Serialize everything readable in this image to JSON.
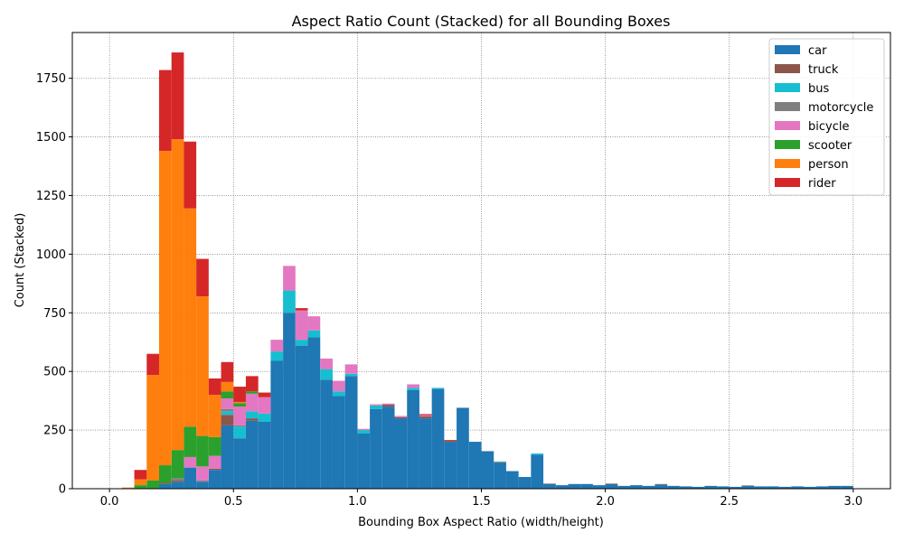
{
  "chart_data": {
    "type": "bar",
    "stacked": true,
    "title": "Aspect Ratio Count (Stacked) for all Bounding Boxes",
    "xlabel": "Bounding Box Aspect Ratio (width/height)",
    "ylabel": "Count (Stacked)",
    "xlim": [
      -0.15,
      3.15
    ],
    "ylim": [
      0,
      1945
    ],
    "x_ticks": [
      0.0,
      0.5,
      1.0,
      1.5,
      2.0,
      2.5,
      3.0
    ],
    "x_tick_labels": [
      "0.0",
      "0.5",
      "1.0",
      "1.5",
      "2.0",
      "2.5",
      "3.0"
    ],
    "y_ticks": [
      0,
      250,
      500,
      750,
      1000,
      1250,
      1500,
      1750
    ],
    "y_tick_labels": [
      "0",
      "250",
      "500",
      "750",
      "1000",
      "1250",
      "1500",
      "1750"
    ],
    "grid": true,
    "legend_position": "top-right",
    "bin_width": 0.05,
    "bin_starts": [
      0.0,
      0.05,
      0.1,
      0.15,
      0.2,
      0.25,
      0.3,
      0.35,
      0.4,
      0.45,
      0.5,
      0.55,
      0.6,
      0.65,
      0.7,
      0.75,
      0.8,
      0.85,
      0.9,
      0.95,
      1.0,
      1.05,
      1.1,
      1.15,
      1.2,
      1.25,
      1.3,
      1.35,
      1.4,
      1.45,
      1.5,
      1.55,
      1.6,
      1.65,
      1.7,
      1.75,
      1.8,
      1.85,
      1.9,
      1.95,
      2.0,
      2.05,
      2.1,
      2.15,
      2.2,
      2.25,
      2.3,
      2.35,
      2.4,
      2.45,
      2.5,
      2.55,
      2.6,
      2.65,
      2.7,
      2.75,
      2.8,
      2.85,
      2.9,
      2.95
    ],
    "series": [
      {
        "name": "car",
        "color": "#1f77b4",
        "values": [
          0,
          0,
          0,
          0,
          20,
          30,
          90,
          30,
          80,
          270,
          215,
          290,
          285,
          545,
          750,
          610,
          645,
          465,
          395,
          480,
          235,
          340,
          350,
          300,
          420,
          300,
          425,
          200,
          345,
          200,
          160,
          110,
          75,
          50,
          145,
          20,
          15,
          20,
          20,
          15,
          20,
          12,
          15,
          12,
          18,
          12,
          10,
          8,
          12,
          10,
          8,
          12,
          10,
          10,
          8,
          10,
          8,
          10,
          12,
          12
        ]
      },
      {
        "name": "truck",
        "color": "#8c564b",
        "values": [
          0,
          0,
          0,
          0,
          5,
          5,
          0,
          0,
          5,
          45,
          0,
          10,
          0,
          0,
          0,
          0,
          0,
          0,
          0,
          0,
          0,
          0,
          8,
          5,
          0,
          8,
          0,
          5,
          0,
          0,
          0,
          3,
          0,
          0,
          0,
          2,
          0,
          0,
          0,
          0,
          2,
          0,
          0,
          0,
          2,
          0,
          0,
          0,
          0,
          0,
          0,
          2,
          0,
          0,
          0,
          0,
          0,
          0,
          0,
          0
        ]
      },
      {
        "name": "bus",
        "color": "#17becf",
        "values": [
          0,
          0,
          0,
          0,
          0,
          0,
          0,
          0,
          0,
          15,
          50,
          30,
          35,
          40,
          95,
          25,
          30,
          45,
          20,
          10,
          15,
          15,
          0,
          0,
          10,
          0,
          5,
          0,
          0,
          0,
          0,
          3,
          0,
          0,
          5,
          0,
          0,
          0,
          0,
          0,
          0,
          0,
          0,
          0,
          0,
          0,
          0,
          0,
          0,
          0,
          0,
          0,
          0,
          0,
          0,
          0,
          0,
          0,
          0,
          0
        ]
      },
      {
        "name": "motorcycle",
        "color": "#7f7f7f",
        "values": [
          0,
          0,
          0,
          0,
          0,
          10,
          0,
          5,
          0,
          10,
          5,
          0,
          0,
          0,
          0,
          0,
          0,
          0,
          0,
          0,
          0,
          0,
          0,
          0,
          0,
          0,
          0,
          0,
          0,
          0,
          0,
          0,
          0,
          0,
          0,
          0,
          0,
          0,
          0,
          0,
          0,
          0,
          0,
          0,
          0,
          0,
          0,
          0,
          0,
          0,
          0,
          0,
          0,
          0,
          0,
          0,
          0,
          0,
          0,
          0
        ]
      },
      {
        "name": "bicycle",
        "color": "#e377c2",
        "values": [
          0,
          0,
          0,
          0,
          0,
          0,
          45,
          60,
          55,
          45,
          80,
          75,
          70,
          50,
          105,
          125,
          60,
          45,
          45,
          40,
          5,
          5,
          5,
          5,
          15,
          5,
          0,
          0,
          0,
          0,
          0,
          0,
          0,
          0,
          0,
          0,
          0,
          0,
          0,
          0,
          0,
          0,
          0,
          0,
          0,
          0,
          0,
          0,
          0,
          0,
          0,
          0,
          0,
          0,
          0,
          0,
          0,
          0,
          0,
          0
        ]
      },
      {
        "name": "scooter",
        "color": "#2ca02c",
        "values": [
          0,
          2,
          15,
          35,
          75,
          120,
          130,
          130,
          80,
          30,
          15,
          10,
          0,
          0,
          0,
          0,
          0,
          0,
          0,
          0,
          0,
          0,
          0,
          0,
          0,
          0,
          0,
          0,
          0,
          0,
          0,
          0,
          0,
          0,
          0,
          0,
          0,
          0,
          0,
          0,
          0,
          0,
          0,
          0,
          0,
          0,
          0,
          0,
          0,
          0,
          0,
          0,
          0,
          0,
          0,
          0,
          0,
          0,
          0,
          0
        ]
      },
      {
        "name": "person",
        "color": "#ff7f0e",
        "values": [
          0,
          3,
          25,
          450,
          1340,
          1325,
          930,
          595,
          180,
          40,
          5,
          0,
          0,
          0,
          0,
          0,
          0,
          0,
          0,
          0,
          0,
          0,
          0,
          0,
          0,
          0,
          0,
          0,
          0,
          0,
          0,
          0,
          0,
          0,
          0,
          0,
          0,
          0,
          0,
          0,
          0,
          0,
          0,
          0,
          0,
          0,
          0,
          0,
          0,
          0,
          0,
          0,
          0,
          0,
          0,
          0,
          0,
          0,
          0,
          0
        ]
      },
      {
        "name": "rider",
        "color": "#d62728",
        "values": [
          0,
          0,
          40,
          90,
          345,
          370,
          285,
          160,
          70,
          85,
          65,
          65,
          20,
          0,
          0,
          10,
          0,
          0,
          0,
          0,
          0,
          0,
          0,
          0,
          0,
          5,
          0,
          3,
          0,
          0,
          0,
          0,
          0,
          0,
          0,
          0,
          0,
          0,
          0,
          0,
          0,
          0,
          0,
          0,
          0,
          0,
          0,
          0,
          0,
          0,
          0,
          0,
          0,
          0,
          0,
          0,
          0,
          0,
          0,
          0
        ]
      }
    ]
  }
}
